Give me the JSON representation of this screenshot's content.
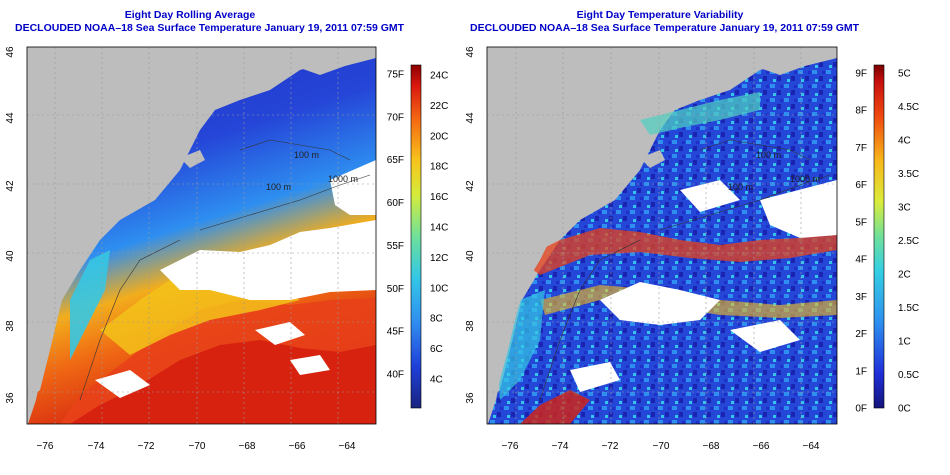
{
  "left_panel": {
    "title_line1": "Eight Day Rolling Average",
    "title_line2": "DECLOUDED NOAA–18 Sea Surface Temperature January 19, 2011 07:59 GMT",
    "colorbar_f": [
      "40F",
      "45F",
      "50F",
      "55F",
      "60F",
      "65F",
      "70F",
      "75F"
    ],
    "colorbar_c": [
      "4C",
      "6C",
      "8C",
      "10C",
      "12C",
      "14C",
      "16C",
      "18C",
      "20C",
      "22C",
      "24C"
    ]
  },
  "right_panel": {
    "title_line1": "Eight Day Temperature Variability",
    "title_line2": "DECLOUDED NOAA–18 Sea Surface Temperature January 19, 2011 07:59 GMT",
    "colorbar_f": [
      "0F",
      "1F",
      "2F",
      "3F",
      "4F",
      "5F",
      "6F",
      "7F",
      "8F",
      "9F"
    ],
    "colorbar_c": [
      "0C",
      "0.5C",
      "1C",
      "1.5C",
      "2C",
      "2.5C",
      "3C",
      "3.5C",
      "4C",
      "4.5C",
      "5C"
    ]
  },
  "x_ticks": [
    "−76",
    "−74",
    "−72",
    "−70",
    "−68",
    "−66",
    "−64"
  ],
  "y_ticks": [
    "36",
    "38",
    "40",
    "42",
    "44",
    "46"
  ],
  "contour_labels": [
    "100 m",
    "100 m",
    "1000 m"
  ],
  "colors": {
    "title": "#0000c8",
    "land": "#bdbdbd",
    "cold": "#1c2fc8",
    "warm": "#d81e10"
  }
}
